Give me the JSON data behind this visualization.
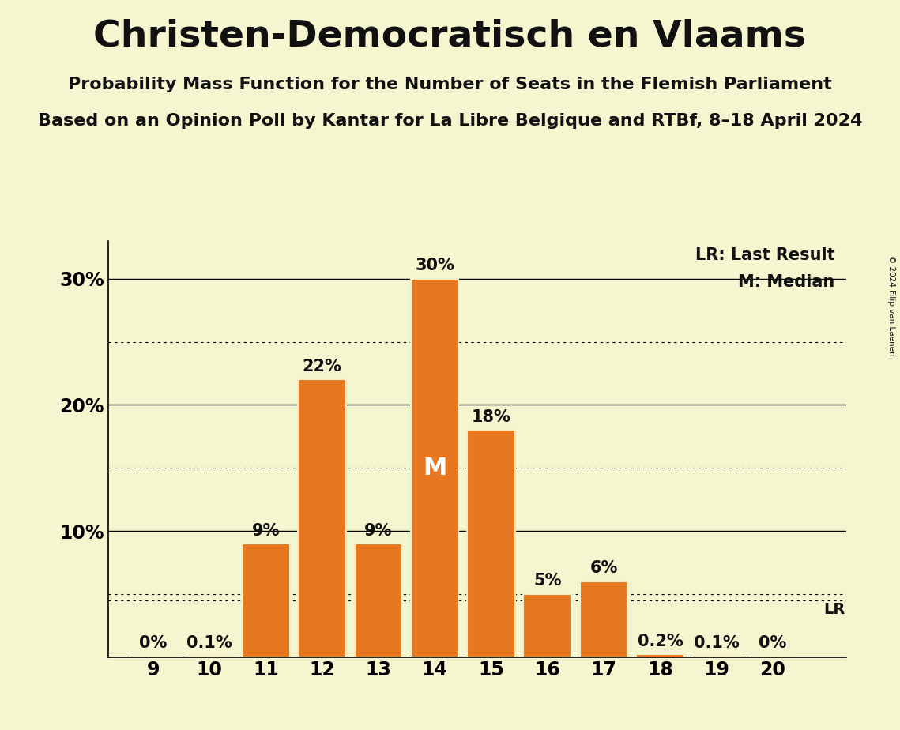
{
  "title": "Christen-Democratisch en Vlaams",
  "subtitle1": "Probability Mass Function for the Number of Seats in the Flemish Parliament",
  "subtitle2": "Based on an Opinion Poll by Kantar for La Libre Belgique and RTBf, 8–18 April 2024",
  "copyright": "© 2024 Filip van Laenen",
  "seats": [
    9,
    10,
    11,
    12,
    13,
    14,
    15,
    16,
    17,
    18,
    19,
    20
  ],
  "probabilities": [
    0.0,
    0.1,
    9.0,
    22.0,
    9.0,
    30.0,
    18.0,
    5.0,
    6.0,
    0.2,
    0.1,
    0.0
  ],
  "bar_color": "#E87722",
  "bar_edge_color": "#F5F0C8",
  "background_color": "#F5F5D0",
  "text_color": "#111111",
  "median_seat": 14,
  "lr_value": 4.5,
  "lr_label": "LR",
  "lr_legend": "LR: Last Result",
  "median_legend": "M: Median",
  "dotted_lines": [
    5.0,
    15.0,
    25.0
  ],
  "solid_lines": [
    10.0,
    20.0,
    30.0
  ],
  "ylim": [
    0,
    33
  ],
  "bar_label_fontsize": 15,
  "axis_fontsize": 17,
  "title_fontsize": 34,
  "subtitle_fontsize": 16,
  "legend_fontsize": 15
}
